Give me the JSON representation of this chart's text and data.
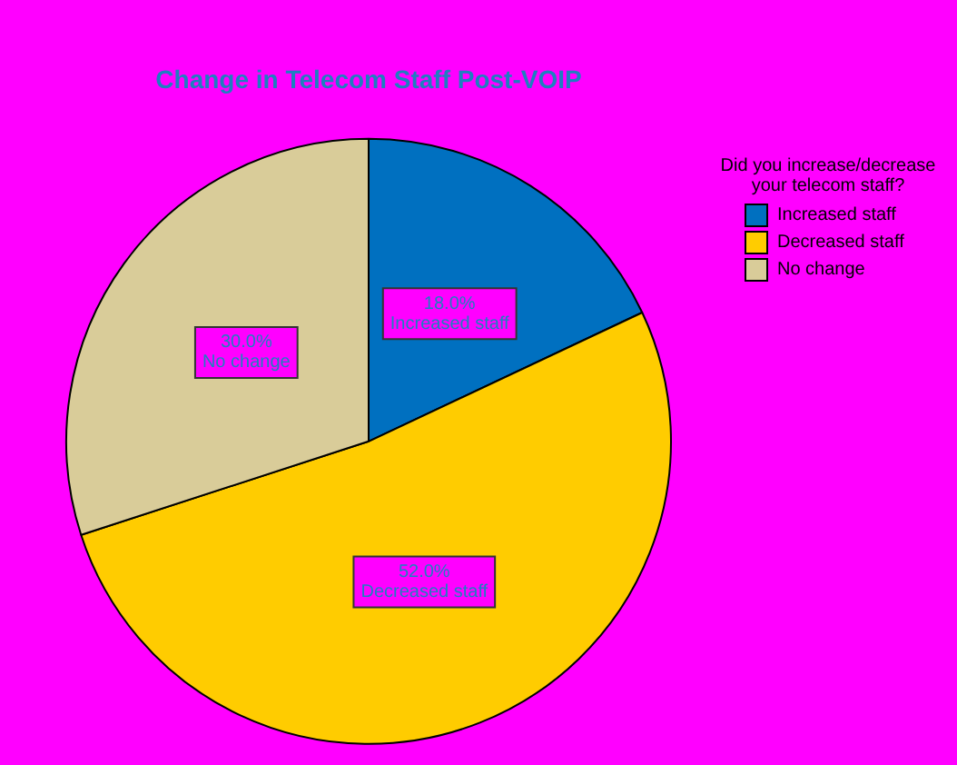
{
  "chart_data": {
    "type": "pie",
    "title": "Change in Telecom Staff Post-VOIP",
    "legend_title": "Did you increase/decrease your telecom staff?",
    "legend": "right",
    "categories": [
      "Increased staff",
      "Decreased staff",
      "No change"
    ],
    "values": [
      18.0,
      52.0,
      30.0
    ],
    "colors": [
      "#0070c0",
      "#ffcc00",
      "#d9cc99"
    ],
    "value_labels": [
      "18.0%",
      "52.0%",
      "30.0%"
    ]
  }
}
